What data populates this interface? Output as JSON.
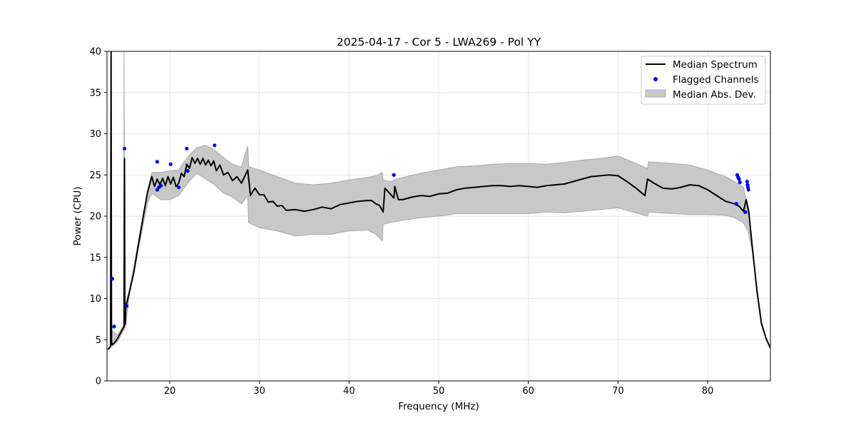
{
  "chart_data": {
    "type": "line",
    "title": "2025-04-17 - Cor 5 - LWA269 - Pol YY",
    "xlabel": "Frequency (MHz)",
    "ylabel": "Power (CPU)",
    "xlim": [
      13.0,
      87.0
    ],
    "ylim": [
      0,
      40
    ],
    "xticks": [
      20,
      30,
      40,
      50,
      60,
      70,
      80
    ],
    "yticks": [
      0,
      5,
      10,
      15,
      20,
      25,
      30,
      35,
      40
    ],
    "xtick_labels": [
      "20",
      "30",
      "40",
      "50",
      "60",
      "70",
      "80"
    ],
    "ytick_labels": [
      "0",
      "5",
      "10",
      "15",
      "20",
      "25",
      "30",
      "35",
      "40"
    ],
    "grid": true,
    "legend": {
      "position": "top-right",
      "entries": [
        {
          "label": "Median Spectrum",
          "kind": "line"
        },
        {
          "label": "Flagged Channels",
          "kind": "marker"
        },
        {
          "label": "Median Abs. Dev.",
          "kind": "band"
        }
      ]
    },
    "colors": {
      "median": "#000000",
      "flagged": "#0000ff",
      "band_fill": "#c8c8c8",
      "band_edge": "#a9a9a9",
      "grid": "#e6e6e6"
    },
    "series": [
      {
        "name": "Median Spectrum",
        "x": [
          13.1,
          13.4,
          13.45,
          13.5,
          13.55,
          13.6,
          13.8,
          14.2,
          14.6,
          14.9,
          14.95,
          15.0,
          15.05,
          15.1,
          15.5,
          16.0,
          16.5,
          17.0,
          17.5,
          18.0,
          18.3,
          18.6,
          18.9,
          19.2,
          19.5,
          19.8,
          20.1,
          20.4,
          20.7,
          21.0,
          21.3,
          21.6,
          21.9,
          22.2,
          22.5,
          22.8,
          23.1,
          23.4,
          23.7,
          24.0,
          24.3,
          24.6,
          24.9,
          25.2,
          25.6,
          26.0,
          26.5,
          27.0,
          27.5,
          28.0,
          28.7,
          29.0,
          29.5,
          30.0,
          30.5,
          31.0,
          31.5,
          32.0,
          32.5,
          33.0,
          34.0,
          35.0,
          36.0,
          37.0,
          38.0,
          39.0,
          40.0,
          41.0,
          42.0,
          42.5,
          43.0,
          43.4,
          43.8,
          44.0,
          44.5,
          45.0,
          45.1,
          45.5,
          46.0,
          47.0,
          48.0,
          49.0,
          50.0,
          51.0,
          52.0,
          53.0,
          54.0,
          55.0,
          56.0,
          57.0,
          58.0,
          59.0,
          60.0,
          61.0,
          62.0,
          63.0,
          64.0,
          65.0,
          66.0,
          67.0,
          68.0,
          69.0,
          70.0,
          71.0,
          72.0,
          73.0,
          73.3,
          74.0,
          75.0,
          76.0,
          77.0,
          78.0,
          79.0,
          80.0,
          81.0,
          82.0,
          83.0,
          83.5,
          84.0,
          84.3,
          84.6,
          85.0,
          85.5,
          86.0,
          86.5,
          87.0
        ],
        "values": [
          3.8,
          4.2,
          40.0,
          5.0,
          4.4,
          4.4,
          4.6,
          5.2,
          6.0,
          6.6,
          27.0,
          6.8,
          7.0,
          9.0,
          10.8,
          13.2,
          16.5,
          19.7,
          22.8,
          24.8,
          23.6,
          24.5,
          23.8,
          24.6,
          23.7,
          24.8,
          23.9,
          24.7,
          23.6,
          24.0,
          25.2,
          24.8,
          26.3,
          25.8,
          27.1,
          26.4,
          27.0,
          26.3,
          27.0,
          26.2,
          26.8,
          26.1,
          26.7,
          25.5,
          26.2,
          25.0,
          25.3,
          24.3,
          24.8,
          24.0,
          25.6,
          22.5,
          23.4,
          22.6,
          22.6,
          21.7,
          21.8,
          21.2,
          21.3,
          20.7,
          20.8,
          20.6,
          20.8,
          21.1,
          20.9,
          21.4,
          21.6,
          21.8,
          21.9,
          21.9,
          21.5,
          21.3,
          20.5,
          23.4,
          22.8,
          22.2,
          23.6,
          22.0,
          22.0,
          22.3,
          22.5,
          22.4,
          22.7,
          22.8,
          23.2,
          23.4,
          23.5,
          23.6,
          23.7,
          23.7,
          23.6,
          23.7,
          23.6,
          23.5,
          23.7,
          23.8,
          23.9,
          24.2,
          24.5,
          24.8,
          24.9,
          25.0,
          24.9,
          24.2,
          23.4,
          22.5,
          24.5,
          24.0,
          23.4,
          23.3,
          23.5,
          23.8,
          23.7,
          23.2,
          22.5,
          21.8,
          21.5,
          21.2,
          20.6,
          22.0,
          20.5,
          16.0,
          11.0,
          7.0,
          5.2,
          4.0
        ]
      },
      {
        "name": "Median Abs. Dev.",
        "x": [
          13.1,
          13.4,
          13.45,
          13.5,
          13.6,
          14.2,
          14.85,
          14.9,
          15.0,
          15.05,
          15.5,
          16.5,
          17.5,
          18.0,
          19.0,
          20.0,
          21.0,
          22.0,
          23.0,
          24.0,
          25.0,
          26.0,
          27.0,
          28.0,
          28.7,
          28.8,
          30.0,
          32.0,
          34.0,
          36.0,
          38.0,
          40.0,
          42.0,
          43.0,
          43.7,
          43.8,
          44.5,
          46.0,
          48.0,
          50.0,
          52.0,
          54.0,
          56.0,
          58.0,
          60.0,
          62.0,
          64.0,
          66.0,
          68.0,
          70.0,
          72.0,
          73.3,
          73.4,
          76.0,
          78.0,
          80.0,
          82.0,
          83.0,
          84.0,
          84.5,
          85.0,
          85.5,
          86.0,
          86.5,
          87.0
        ],
        "upper": [
          3.8,
          4.4,
          40.0,
          7.5,
          6.0,
          5.6,
          6.8,
          40.0,
          7.8,
          9.2,
          11.0,
          17.0,
          23.0,
          25.3,
          25.3,
          25.5,
          25.6,
          27.2,
          28.3,
          28.6,
          28.0,
          27.1,
          26.3,
          26.0,
          28.5,
          26.0,
          25.6,
          24.8,
          24.0,
          23.8,
          24.0,
          24.4,
          24.7,
          24.9,
          25.3,
          24.4,
          24.2,
          24.7,
          25.2,
          25.6,
          26.0,
          26.1,
          26.3,
          26.4,
          26.4,
          26.3,
          26.5,
          26.8,
          27.0,
          27.3,
          26.4,
          25.8,
          26.6,
          26.4,
          26.2,
          25.6,
          24.8,
          24.2,
          23.5,
          20.5,
          16.3,
          11.2,
          7.2,
          5.3,
          4.0
        ],
        "lower": [
          3.8,
          4.0,
          4.2,
          4.2,
          4.2,
          4.8,
          6.2,
          6.2,
          6.4,
          6.6,
          10.5,
          16.0,
          21.5,
          22.8,
          22.0,
          22.0,
          22.5,
          24.0,
          25.2,
          24.5,
          23.8,
          22.8,
          22.3,
          21.5,
          22.5,
          19.2,
          18.6,
          18.2,
          17.6,
          17.8,
          17.8,
          18.2,
          18.3,
          17.8,
          17.0,
          19.0,
          19.2,
          19.5,
          19.8,
          20.0,
          20.3,
          20.3,
          20.3,
          20.3,
          20.3,
          20.5,
          20.4,
          20.6,
          20.8,
          21.0,
          20.4,
          20.0,
          20.5,
          20.3,
          20.2,
          20.2,
          20.1,
          19.8,
          19.2,
          18.2,
          15.7,
          10.8,
          6.8,
          5.1,
          4.0
        ]
      },
      {
        "name": "Flagged Channels",
        "kind": "scatter",
        "points": [
          [
            13.6,
            12.4
          ],
          [
            13.8,
            6.6
          ],
          [
            14.95,
            28.2
          ],
          [
            15.2,
            9.1
          ],
          [
            18.6,
            26.6
          ],
          [
            18.6,
            23.2
          ],
          [
            18.8,
            23.5
          ],
          [
            19.0,
            23.7
          ],
          [
            20.1,
            26.3
          ],
          [
            21.0,
            23.5
          ],
          [
            21.9,
            28.2
          ],
          [
            22.0,
            25.5
          ],
          [
            25.0,
            28.6
          ],
          [
            45.0,
            25.0
          ],
          [
            83.2,
            21.5
          ],
          [
            83.3,
            25.0
          ],
          [
            83.4,
            24.7
          ],
          [
            83.5,
            24.5
          ],
          [
            83.6,
            24.1
          ],
          [
            84.2,
            20.5
          ],
          [
            84.4,
            24.2
          ],
          [
            84.45,
            23.8
          ],
          [
            84.5,
            23.5
          ],
          [
            84.55,
            23.2
          ]
        ]
      }
    ]
  }
}
